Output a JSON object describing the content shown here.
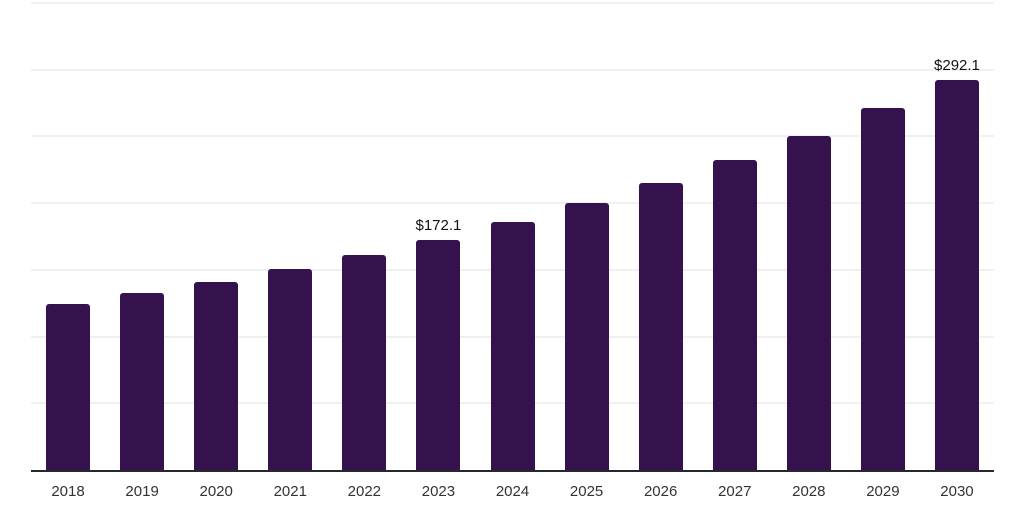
{
  "page": {
    "background_color": "#ffffff"
  },
  "chart_data": {
    "type": "bar",
    "title": "",
    "xlabel": "",
    "ylabel": "",
    "categories": [
      "2018",
      "2019",
      "2020",
      "2021",
      "2022",
      "2023",
      "2024",
      "2025",
      "2026",
      "2027",
      "2028",
      "2029",
      "2030"
    ],
    "values": [
      124.4,
      132.6,
      140.9,
      150.5,
      161.0,
      172.1,
      185.6,
      199.9,
      214.9,
      232.7,
      250.0,
      271.6,
      292.1
    ],
    "data_labels": [
      "",
      "",
      "",
      "",
      "",
      "$172.1",
      "",
      "",
      "",
      "",
      "",
      "",
      "$292.1"
    ],
    "ylim": [
      0,
      350
    ],
    "grid_step": 50,
    "grid": "horizontal-only",
    "y_axis_tick_labels": "none",
    "legend_position": "none",
    "bar_color": "#35124D",
    "axis_line_color": "#27272e",
    "gridline_color": "#f0f0f3",
    "data_label_color": "#111111",
    "tick_label_color": "#333333"
  }
}
